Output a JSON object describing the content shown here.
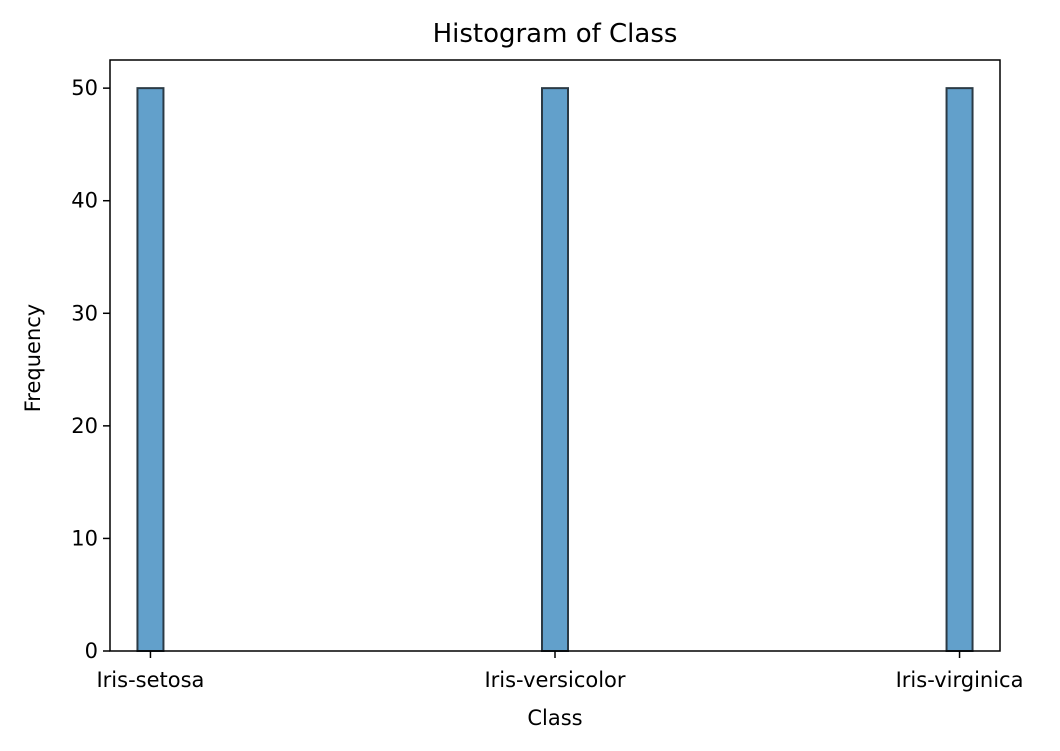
{
  "chart_data": {
    "type": "bar",
    "title": "Histogram of Class",
    "xlabel": "Class",
    "ylabel": "Frequency",
    "categories": [
      "Iris-setosa",
      "Iris-versicolor",
      "Iris-virginica"
    ],
    "values": [
      50,
      50,
      50
    ],
    "ylim": [
      0,
      52.5
    ],
    "yticks": [
      0,
      10,
      20,
      30,
      40,
      50
    ],
    "grid": false,
    "colors": {
      "bar_fill": "#62a0cb",
      "bar_edge": "#2b3a45",
      "axis": "#000000"
    }
  }
}
